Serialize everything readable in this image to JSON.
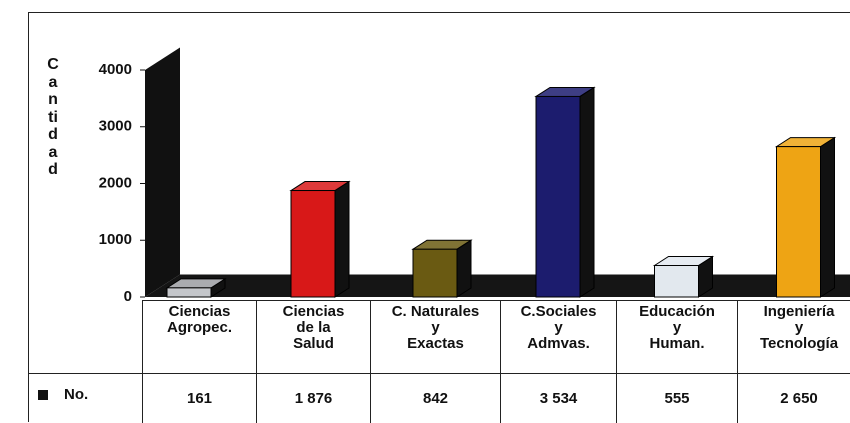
{
  "chart_data": {
    "type": "bar3d",
    "y_label": "Cantidad",
    "categories": [
      "Ciencias\nAgropec.",
      "Ciencias\nde la\nSalud",
      "C. Naturales\ny\nExactas",
      "C.Sociales\ny\nAdmvas.",
      "Educación\ny\nHuman.",
      "Ingeniería\ny\nTecnología"
    ],
    "series": [
      {
        "name": "No.",
        "color": "#111111",
        "values": [
          161,
          1876,
          842,
          3534,
          555,
          2650
        ],
        "value_labels": [
          "161",
          "1 876",
          "842",
          "3 534",
          "555",
          "2 650"
        ]
      }
    ],
    "colors": [
      "#c4c6ca",
      "#d81818",
      "#6a5a12",
      "#1c1c6e",
      "#e2e8ee",
      "#eea414"
    ],
    "ylim": [
      0,
      4000
    ],
    "yticks": [
      0,
      1000,
      2000,
      3000,
      4000
    ]
  }
}
